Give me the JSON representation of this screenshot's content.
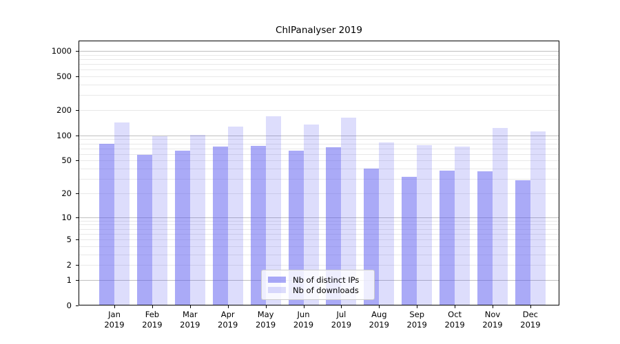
{
  "title": "ChIPanalyser 2019",
  "axis": {
    "year_label": "2019",
    "yticks": [
      1000,
      500,
      200,
      100,
      50,
      20,
      10,
      5,
      2,
      1,
      0
    ],
    "ytick_major": [
      1000,
      100,
      10,
      1
    ]
  },
  "legend": {
    "items": [
      {
        "label": "Nb of distinct IPs"
      },
      {
        "label": "Nb of downloads"
      }
    ]
  },
  "chart_data": {
    "type": "bar",
    "title": "ChIPanalyser 2019",
    "categories": [
      "Jan",
      "Feb",
      "Mar",
      "Apr",
      "May",
      "Jun",
      "Jul",
      "Aug",
      "Sep",
      "Oct",
      "Nov",
      "Dec"
    ],
    "category_year": "2019",
    "series": [
      {
        "name": "Nb of distinct IPs",
        "color": "rgba(85,85,240,0.5)",
        "values": [
          79,
          59,
          66,
          74,
          75,
          66,
          73,
          40,
          32,
          38,
          37,
          29
        ]
      },
      {
        "name": "Nb of downloads",
        "color": "rgba(85,85,240,0.2)",
        "values": [
          142,
          98,
          102,
          128,
          169,
          135,
          163,
          83,
          77,
          74,
          123,
          112
        ]
      }
    ],
    "xlabel": "",
    "ylabel": "",
    "yscale": "log1p",
    "yticks": [
      0,
      1,
      2,
      5,
      10,
      20,
      50,
      100,
      200,
      500,
      1000
    ],
    "ylim": [
      0,
      1320
    ],
    "grid": true,
    "legend_position": "lower center"
  }
}
